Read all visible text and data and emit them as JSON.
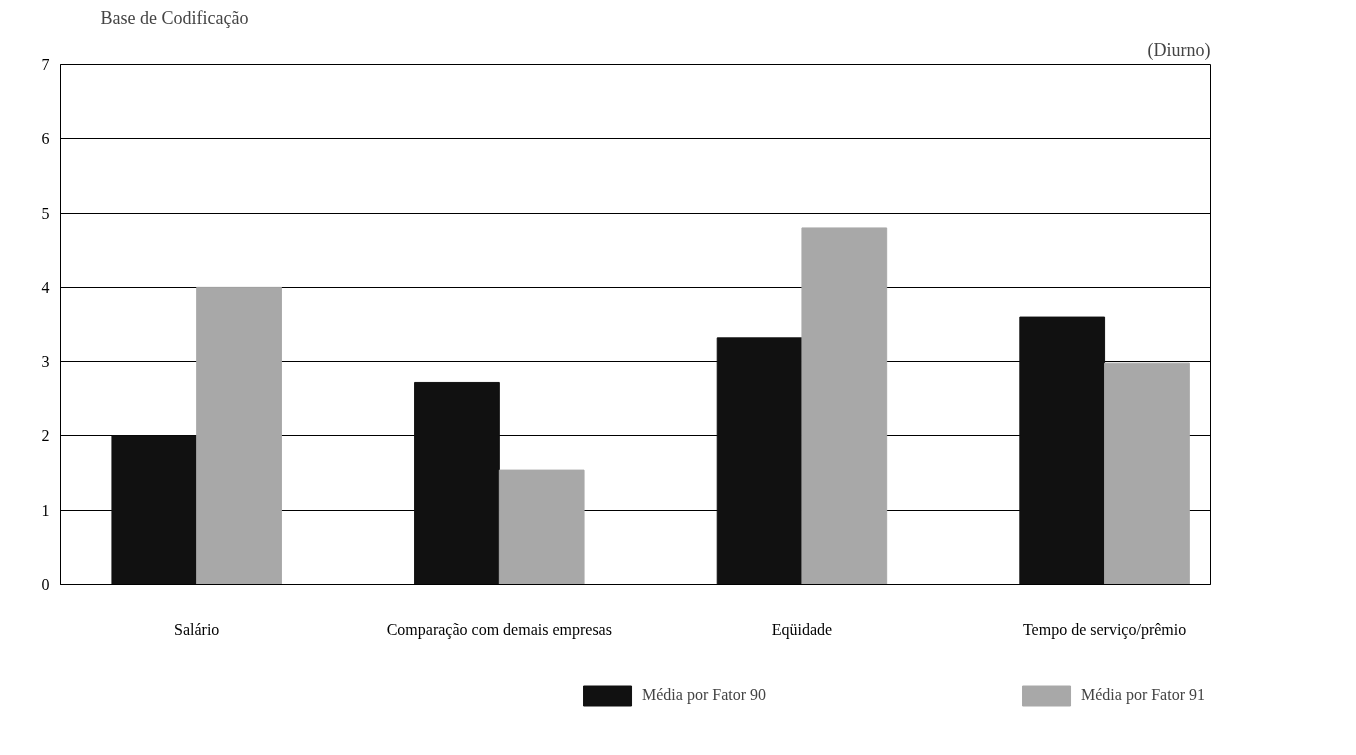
{
  "chart_data": {
    "type": "bar",
    "title": "Base de Codificação",
    "subtitle": "(Diurno)",
    "categories": [
      "Salário",
      "Comparação com demais empresas",
      "Eqüidade",
      "Tempo de serviço/prêmio"
    ],
    "series": [
      {
        "name": "Média por Fator 90",
        "color": "#111111",
        "values": [
          2.0,
          2.72,
          3.32,
          3.6
        ]
      },
      {
        "name": "Média por Fator 91",
        "color": "#a8a8a8",
        "values": [
          4.0,
          1.54,
          4.8,
          2.98
        ]
      }
    ],
    "ylim": [
      0,
      7
    ],
    "yticks": [
      0,
      1,
      2,
      3,
      4,
      5,
      6,
      7
    ],
    "grid": "y",
    "legend": "bottom"
  }
}
